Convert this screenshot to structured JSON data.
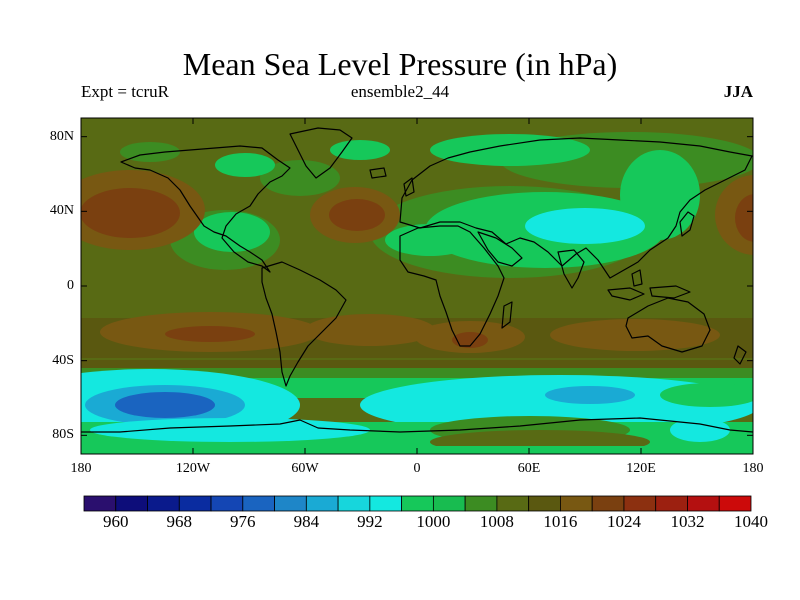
{
  "title": "Mean Sea Level Pressure (in hPa)",
  "subtitle_left": "Expt = tcruR",
  "subtitle_center": "ensemble2_44",
  "subtitle_right": "JJA",
  "map": {
    "projection": "cylindrical-equidistant",
    "lon_range": [
      -180,
      180
    ],
    "lat_range": [
      -90,
      90
    ],
    "y_ticks": [
      {
        "lat": 80,
        "label": "80N"
      },
      {
        "lat": 40,
        "label": "40N"
      },
      {
        "lat": 0,
        "label": "0"
      },
      {
        "lat": -40,
        "label": "40S"
      },
      {
        "lat": -80,
        "label": "80S"
      }
    ],
    "x_ticks": [
      {
        "lon": -180,
        "label": "180"
      },
      {
        "lon": -120,
        "label": "120W"
      },
      {
        "lon": -60,
        "label": "60W"
      },
      {
        "lon": 0,
        "label": "0"
      },
      {
        "lon": 60,
        "label": "60E"
      },
      {
        "lon": 120,
        "label": "120E"
      },
      {
        "lon": 180,
        "label": "180"
      }
    ]
  },
  "colorbar": {
    "min": 956,
    "step": 4,
    "colors": [
      "#2a0f6e",
      "#0d0d7a",
      "#0a1a8c",
      "#0a2ca0",
      "#1446b4",
      "#1a64c0",
      "#1e86c8",
      "#1aaad4",
      "#17d6dc",
      "#14e8e0",
      "#16c85a",
      "#18bc50",
      "#3c8c22",
      "#586a14",
      "#5a5810",
      "#785812",
      "#7a4010",
      "#8c3010",
      "#9c2010",
      "#b41010",
      "#cc0a0a"
    ],
    "labels": [
      "960",
      "968",
      "976",
      "984",
      "992",
      "1000",
      "1008",
      "1016",
      "1024",
      "1032",
      "1040"
    ]
  }
}
